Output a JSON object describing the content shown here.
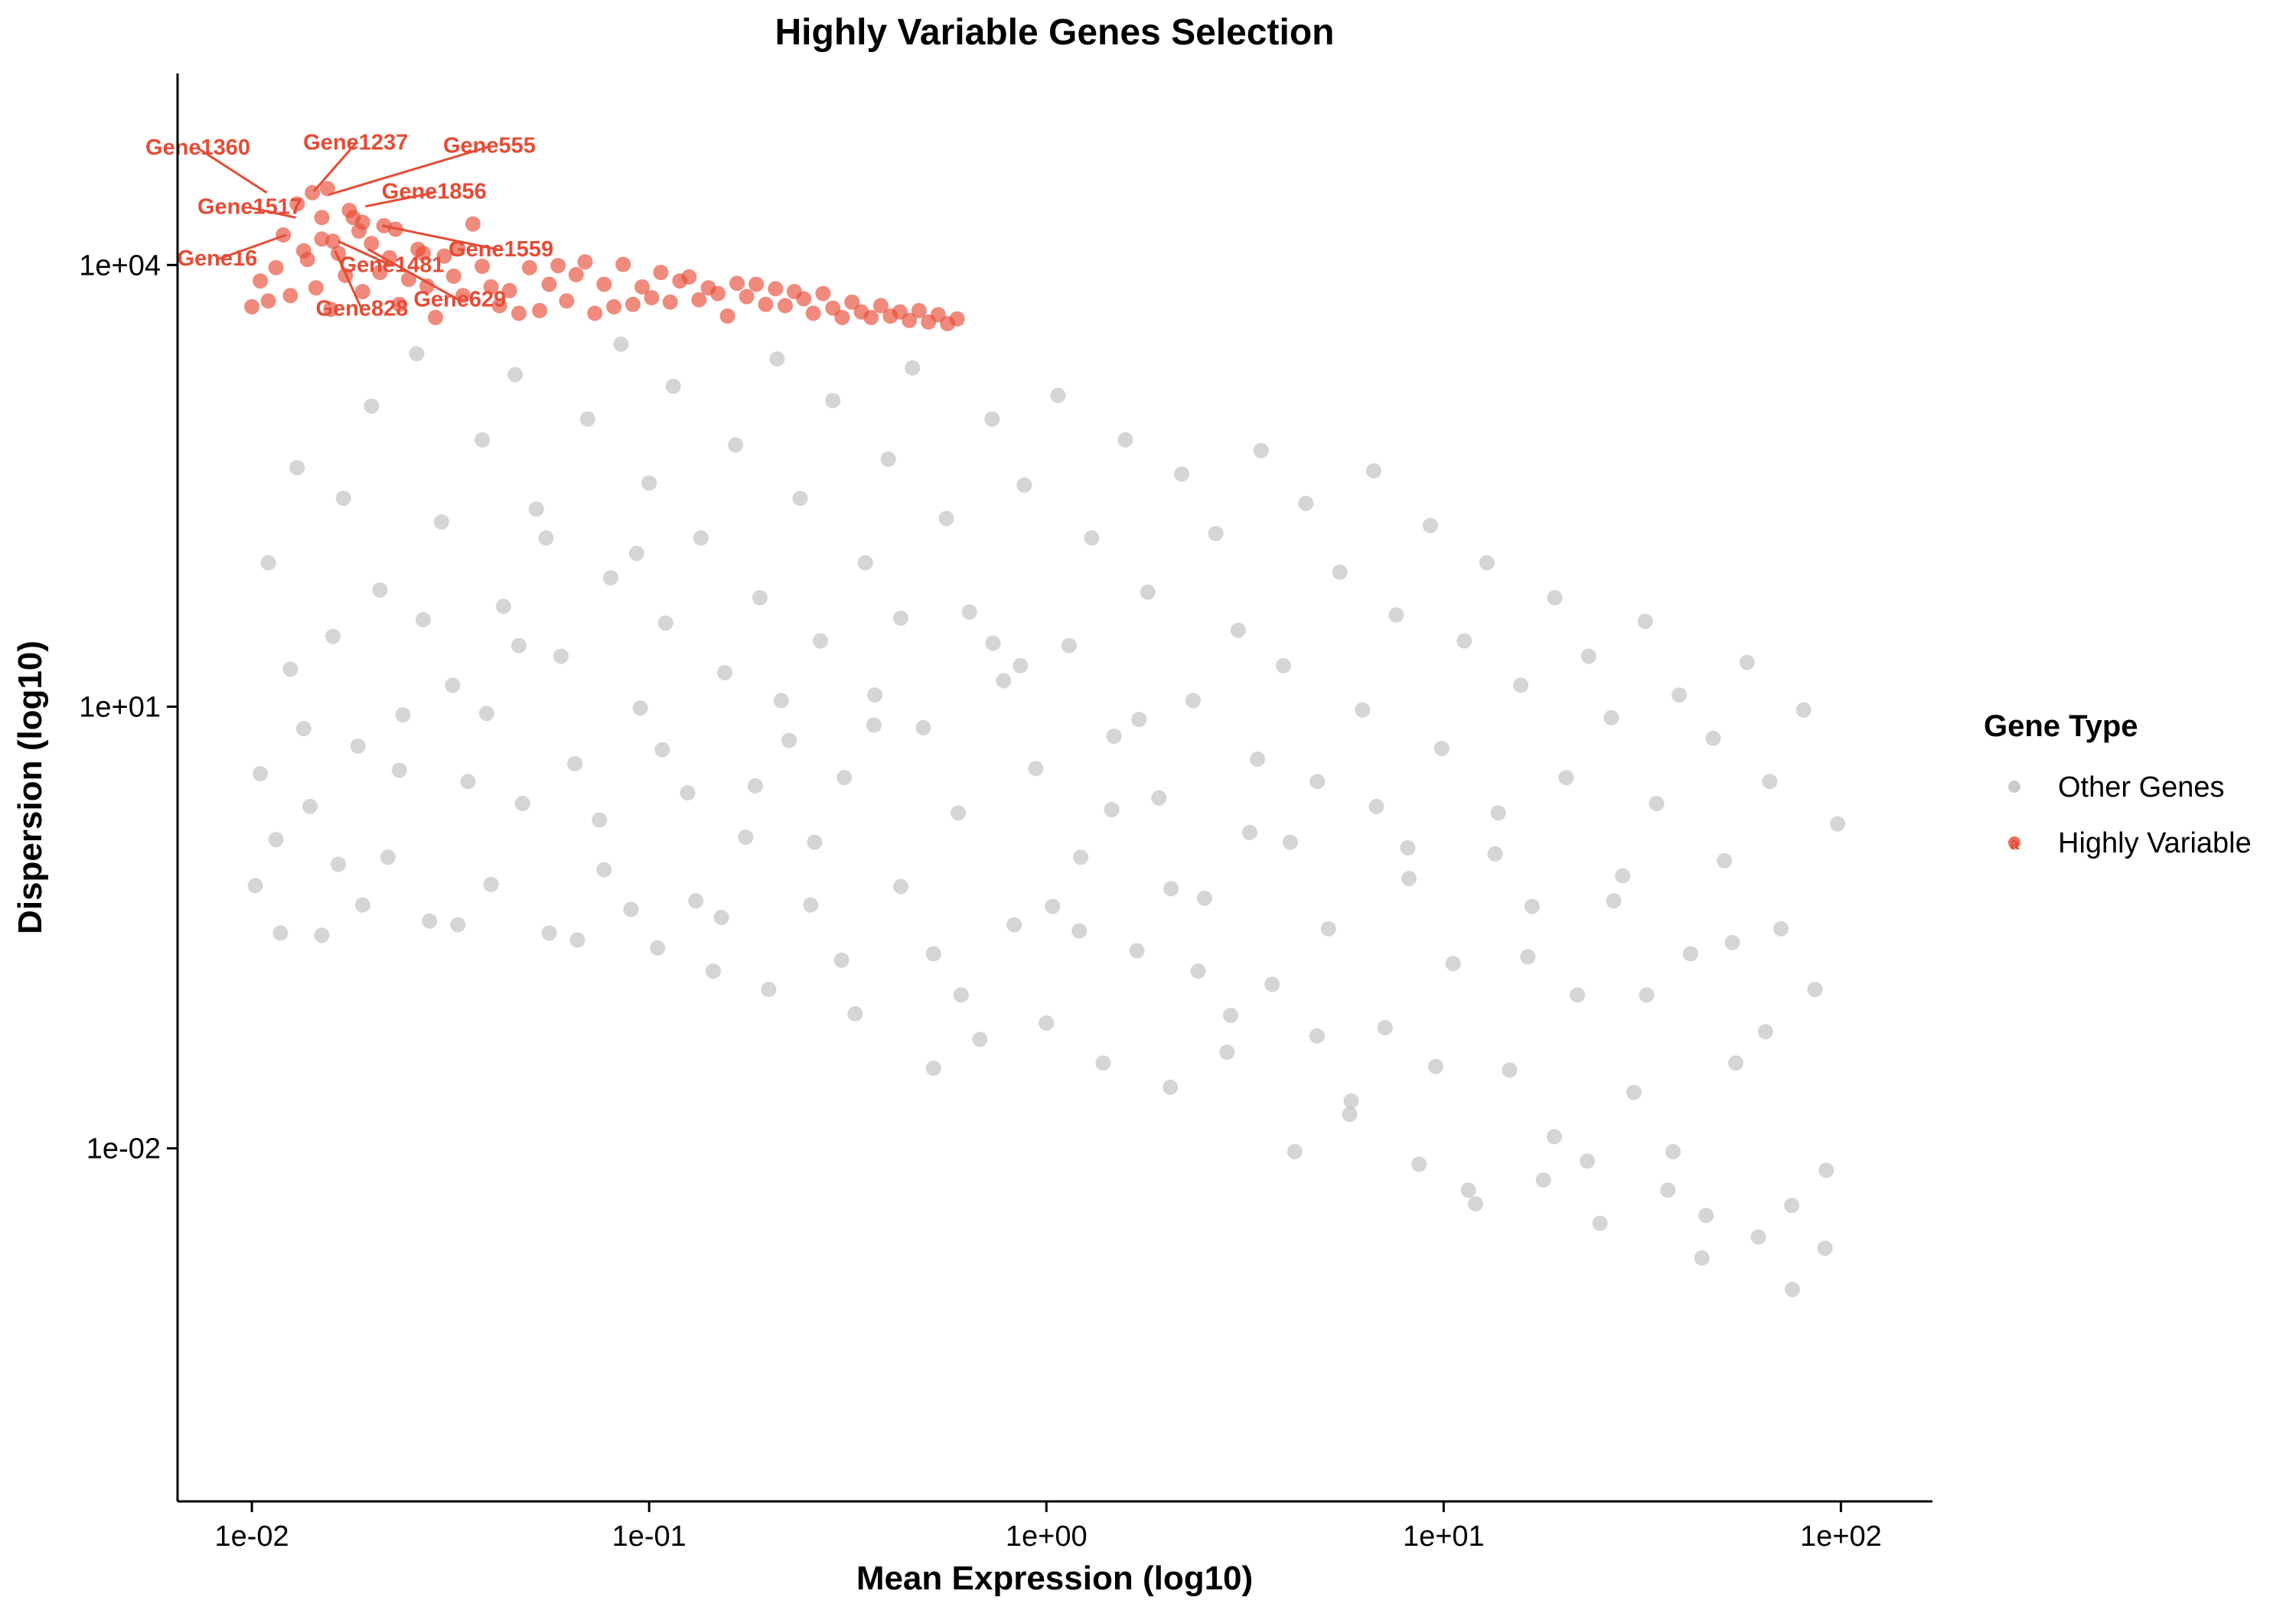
{
  "chart_data": {
    "type": "scatter",
    "title": "Highly Variable Genes Selection",
    "xlabel": "Mean Expression (log10)",
    "ylabel": "Dispersion (log10)",
    "x_scale": "log10",
    "y_scale": "log10",
    "xlim": [
      0.0065,
      170
    ],
    "ylim": [
      4e-05,
      200000
    ],
    "x_ticks": [
      {
        "value": 0.01,
        "label": "1e-02"
      },
      {
        "value": 0.1,
        "label": "1e-01"
      },
      {
        "value": 1,
        "label": "1e+00"
      },
      {
        "value": 10,
        "label": "1e+01"
      },
      {
        "value": 100,
        "label": "1e+02"
      }
    ],
    "y_ticks": [
      {
        "value": 0.01,
        "label": "1e-02"
      },
      {
        "value": 10,
        "label": "1e+01"
      },
      {
        "value": 10000,
        "label": "1e+04"
      }
    ],
    "legend": {
      "title": "Gene Type",
      "position": "right",
      "entries": [
        {
          "name": "Other Genes",
          "color": "#BEBEBE"
        },
        {
          "name": "Highly Variable",
          "color": "#E64B35"
        }
      ]
    },
    "series": [
      {
        "name": "Other Genes",
        "color": "#BEBEBE",
        "opacity": 0.65,
        "points": [
          [
            0.0102,
            0.61
          ],
          [
            0.0115,
            1.25
          ],
          [
            0.0105,
            3.5
          ],
          [
            0.0125,
            18
          ],
          [
            0.011,
            95
          ],
          [
            0.013,
            420
          ],
          [
            0.015,
            0.28
          ],
          [
            0.014,
            2.1
          ],
          [
            0.016,
            30
          ],
          [
            0.017,
            260
          ],
          [
            0.0185,
            5.4
          ],
          [
            0.02,
            1100
          ],
          [
            0.022,
            0.95
          ],
          [
            0.021,
            62
          ],
          [
            0.024,
            8.8
          ],
          [
            0.026,
            2500
          ],
          [
            0.028,
            0.35
          ],
          [
            0.03,
            180
          ],
          [
            0.032,
            14
          ],
          [
            0.035,
            3.1
          ],
          [
            0.038,
            650
          ],
          [
            0.04,
            0.62
          ],
          [
            0.043,
            48
          ],
          [
            0.046,
            1800
          ],
          [
            0.048,
            2.2
          ],
          [
            0.052,
            220
          ],
          [
            0.056,
            0.29
          ],
          [
            0.06,
            22
          ],
          [
            0.065,
            4.1
          ],
          [
            0.07,
            900
          ],
          [
            0.075,
            1.7
          ],
          [
            0.08,
            75
          ],
          [
            0.085,
            2900
          ],
          [
            0.09,
            0.42
          ],
          [
            0.095,
            9.8
          ],
          [
            0.1,
            330
          ],
          [
            0.105,
            0.23
          ],
          [
            0.11,
            37
          ],
          [
            0.115,
            1500
          ],
          [
            0.125,
            2.6
          ],
          [
            0.135,
            140
          ],
          [
            0.145,
            0.16
          ],
          [
            0.155,
            17
          ],
          [
            0.165,
            600
          ],
          [
            0.175,
            1.3
          ],
          [
            0.19,
            55
          ],
          [
            0.2,
            0.12
          ],
          [
            0.21,
            2300
          ],
          [
            0.225,
            5.9
          ],
          [
            0.24,
            260
          ],
          [
            0.255,
            0.45
          ],
          [
            0.27,
            28
          ],
          [
            0.29,
            1200
          ],
          [
            0.31,
            3.3
          ],
          [
            0.33,
            0.082
          ],
          [
            0.35,
            95
          ],
          [
            0.37,
            12
          ],
          [
            0.4,
            480
          ],
          [
            0.43,
            0.6
          ],
          [
            0.46,
            2000
          ],
          [
            0.49,
            7.2
          ],
          [
            0.52,
            0.21
          ],
          [
            0.56,
            190
          ],
          [
            0.6,
            1.9
          ],
          [
            0.64,
            44
          ],
          [
            0.68,
            0.055
          ],
          [
            0.73,
            900
          ],
          [
            0.78,
            15
          ],
          [
            0.83,
            0.33
          ],
          [
            0.88,
            320
          ],
          [
            0.94,
            3.8
          ],
          [
            1.0,
            0.071
          ],
          [
            1.07,
            1300
          ],
          [
            1.14,
            26
          ],
          [
            1.22,
            0.95
          ],
          [
            1.3,
            140
          ],
          [
            1.39,
            0.038
          ],
          [
            1.48,
            6.3
          ],
          [
            1.58,
            650
          ],
          [
            1.69,
            0.22
          ],
          [
            1.8,
            60
          ],
          [
            1.92,
            2.4
          ],
          [
            2.05,
            0.026
          ],
          [
            2.19,
            380
          ],
          [
            2.34,
            11
          ],
          [
            2.5,
            0.5
          ],
          [
            2.67,
            150
          ],
          [
            2.85,
            0.045
          ],
          [
            3.04,
            33
          ],
          [
            3.25,
            1.4
          ],
          [
            3.47,
            550
          ],
          [
            3.7,
            0.13
          ],
          [
            3.95,
            19
          ],
          [
            4.22,
            0.0095
          ],
          [
            4.5,
            240
          ],
          [
            4.81,
            3.1
          ],
          [
            5.13,
            0.31
          ],
          [
            5.48,
            82
          ],
          [
            5.85,
            0.021
          ],
          [
            6.25,
            9.5
          ],
          [
            6.67,
            400
          ],
          [
            7.12,
            0.066
          ],
          [
            7.6,
            42
          ],
          [
            8.12,
            1.1
          ],
          [
            8.67,
            0.0078
          ],
          [
            9.26,
            170
          ],
          [
            9.89,
            5.2
          ],
          [
            10.56,
            0.18
          ],
          [
            11.27,
            28
          ],
          [
            12.03,
            0.0042
          ],
          [
            12.85,
            95
          ],
          [
            13.72,
            1.9
          ],
          [
            14.65,
            0.034
          ],
          [
            15.64,
            14
          ],
          [
            16.7,
            0.44
          ],
          [
            17.83,
            0.0061
          ],
          [
            19.04,
            55
          ],
          [
            20.33,
            3.3
          ],
          [
            21.71,
            0.11
          ],
          [
            23.18,
            22
          ],
          [
            24.75,
            0.0031
          ],
          [
            26.43,
            8.4
          ],
          [
            28.22,
            0.71
          ],
          [
            30.13,
            0.024
          ],
          [
            32.17,
            38
          ],
          [
            34.35,
            2.2
          ],
          [
            36.68,
            0.0052
          ],
          [
            39.17,
            12
          ],
          [
            41.82,
            0.21
          ],
          [
            44.66,
            0.0018
          ],
          [
            47.68,
            6.1
          ],
          [
            50.91,
            0.9
          ],
          [
            54.36,
            0.038
          ],
          [
            58.05,
            20
          ],
          [
            61.98,
            0.0025
          ],
          [
            66.18,
            3.1
          ],
          [
            70.67,
            0.31
          ],
          [
            75.46,
            0.0011
          ],
          [
            80.57,
            9.5
          ],
          [
            86.03,
            0.12
          ],
          [
            91.87,
            0.0071
          ],
          [
            98.1,
            1.6
          ],
          [
            0.0135,
            7.1
          ],
          [
            0.019,
            0.45
          ],
          [
            0.027,
            39
          ],
          [
            0.039,
            9.0
          ],
          [
            0.055,
            140
          ],
          [
            0.077,
            0.78
          ],
          [
            0.108,
            5.1
          ],
          [
            0.152,
            0.37
          ],
          [
            0.215,
            11
          ],
          [
            0.305,
            0.19
          ],
          [
            0.43,
            40
          ],
          [
            0.61,
            0.11
          ],
          [
            0.86,
            19
          ],
          [
            1.21,
            0.3
          ],
          [
            1.71,
            8.2
          ],
          [
            2.41,
            0.16
          ],
          [
            3.4,
            4.4
          ],
          [
            4.8,
            0.058
          ],
          [
            6.77,
            2.1
          ],
          [
            9.55,
            0.036
          ],
          [
            13.47,
            1.0
          ],
          [
            19.0,
            0.012
          ],
          [
            26.8,
            0.48
          ],
          [
            37.8,
            0.0095
          ],
          [
            53.3,
            0.25
          ],
          [
            75.2,
            0.0041
          ],
          [
            0.0118,
            0.29
          ],
          [
            0.0165,
            0.85
          ],
          [
            0.0235,
            3.7
          ],
          [
            0.033,
            0.33
          ],
          [
            0.047,
            26
          ],
          [
            0.066,
            0.26
          ],
          [
            0.093,
            110
          ],
          [
            0.131,
            0.48
          ],
          [
            0.185,
            2.9
          ],
          [
            0.261,
            1.2
          ],
          [
            0.368,
            7.5
          ],
          [
            0.52,
            0.035
          ],
          [
            0.734,
            27
          ],
          [
            1.036,
            0.44
          ],
          [
            1.46,
            2.0
          ],
          [
            2.06,
            0.58
          ],
          [
            2.91,
            0.08
          ],
          [
            4.11,
            1.2
          ],
          [
            5.8,
            0.017
          ],
          [
            8.18,
            0.68
          ],
          [
            11.54,
            0.0052
          ],
          [
            16.29,
            0.2
          ],
          [
            22.99,
            0.0082
          ],
          [
            32.44,
            0.11
          ],
          [
            45.78,
            0.0035
          ],
          [
            64.61,
            0.062
          ],
          [
            91.19,
            0.0021
          ]
        ]
      },
      {
        "name": "Highly Variable",
        "color": "#E64B35",
        "opacity": 0.65,
        "points": [
          [
            0.01,
            5200
          ],
          [
            0.0105,
            7800
          ],
          [
            0.011,
            5700
          ],
          [
            0.0115,
            9600
          ],
          [
            0.012,
            16000
          ],
          [
            0.0125,
            6200
          ],
          [
            0.013,
            26000
          ],
          [
            0.0138,
            10900
          ],
          [
            0.0145,
            7000
          ],
          [
            0.015,
            15000
          ],
          [
            0.0158,
            5000
          ],
          [
            0.0165,
            12000
          ],
          [
            0.0172,
            8500
          ],
          [
            0.018,
            21000
          ],
          [
            0.019,
            6600
          ],
          [
            0.02,
            14000
          ],
          [
            0.021,
            8900
          ],
          [
            0.0222,
            11200
          ],
          [
            0.0235,
            5400
          ],
          [
            0.0248,
            8000
          ],
          [
            0.0262,
            12800
          ],
          [
            0.0276,
            7200
          ],
          [
            0.029,
            4400
          ],
          [
            0.0305,
            11500
          ],
          [
            0.0322,
            8400
          ],
          [
            0.034,
            6200
          ],
          [
            0.036,
            19000
          ],
          [
            0.038,
            9800
          ],
          [
            0.04,
            7100
          ],
          [
            0.042,
            5300
          ],
          [
            0.0445,
            6700
          ],
          [
            0.047,
            4700
          ],
          [
            0.05,
            9600
          ],
          [
            0.053,
            4900
          ],
          [
            0.056,
            7400
          ],
          [
            0.059,
            9900
          ],
          [
            0.062,
            5700
          ],
          [
            0.0655,
            8600
          ],
          [
            0.069,
            10500
          ],
          [
            0.073,
            4700
          ],
          [
            0.077,
            7400
          ],
          [
            0.0815,
            5200
          ],
          [
            0.086,
            10100
          ],
          [
            0.091,
            5400
          ],
          [
            0.096,
            7100
          ],
          [
            0.1015,
            6000
          ],
          [
            0.107,
            8900
          ],
          [
            0.113,
            5600
          ],
          [
            0.1195,
            7800
          ],
          [
            0.126,
            8300
          ],
          [
            0.1335,
            5800
          ],
          [
            0.141,
            7000
          ],
          [
            0.149,
            6400
          ],
          [
            0.1575,
            4500
          ],
          [
            0.1665,
            7500
          ],
          [
            0.176,
            6100
          ],
          [
            0.186,
            7400
          ],
          [
            0.1965,
            5400
          ],
          [
            0.208,
            6900
          ],
          [
            0.22,
            5300
          ],
          [
            0.232,
            6600
          ],
          [
            0.245,
            5900
          ],
          [
            0.259,
            4700
          ],
          [
            0.274,
            6400
          ],
          [
            0.29,
            5100
          ],
          [
            0.306,
            4400
          ],
          [
            0.324,
            5600
          ],
          [
            0.342,
            4800
          ],
          [
            0.362,
            4400
          ],
          [
            0.383,
            5300
          ],
          [
            0.405,
            4500
          ],
          [
            0.428,
            4800
          ],
          [
            0.452,
            4200
          ],
          [
            0.478,
            4900
          ],
          [
            0.505,
            4100
          ],
          [
            0.534,
            4600
          ],
          [
            0.564,
            4000
          ],
          [
            0.596,
            4300
          ],
          [
            0.0142,
            31000
          ],
          [
            0.0155,
            33000
          ],
          [
            0.0176,
            23500
          ],
          [
            0.0186,
            17000
          ],
          [
            0.0215,
            18500
          ],
          [
            0.016,
            14500
          ],
          [
            0.0135,
            12500
          ],
          [
            0.019,
            19500
          ],
          [
            0.023,
            17500
          ],
          [
            0.027,
            12000
          ],
          [
            0.033,
            13000
          ],
          [
            0.015,
            21000
          ]
        ]
      }
    ],
    "annotations": [
      {
        "label": "Gene1360",
        "x": 0.0109,
        "y": 31000
      },
      {
        "label": "Gene1237",
        "x": 0.0143,
        "y": 31500
      },
      {
        "label": "Gene555",
        "x": 0.0156,
        "y": 30000
      },
      {
        "label": "Gene1856",
        "x": 0.0193,
        "y": 25000
      },
      {
        "label": "Gene1517",
        "x": 0.0129,
        "y": 21000
      },
      {
        "label": "Gene1559",
        "x": 0.0213,
        "y": 18500
      },
      {
        "label": "Gene16",
        "x": 0.0122,
        "y": 16000
      },
      {
        "label": "Gene1481",
        "x": 0.0165,
        "y": 14500
      },
      {
        "label": "Gene828",
        "x": 0.0162,
        "y": 12500
      },
      {
        "label": "Gene629",
        "x": 0.0196,
        "y": 12800
      }
    ]
  }
}
